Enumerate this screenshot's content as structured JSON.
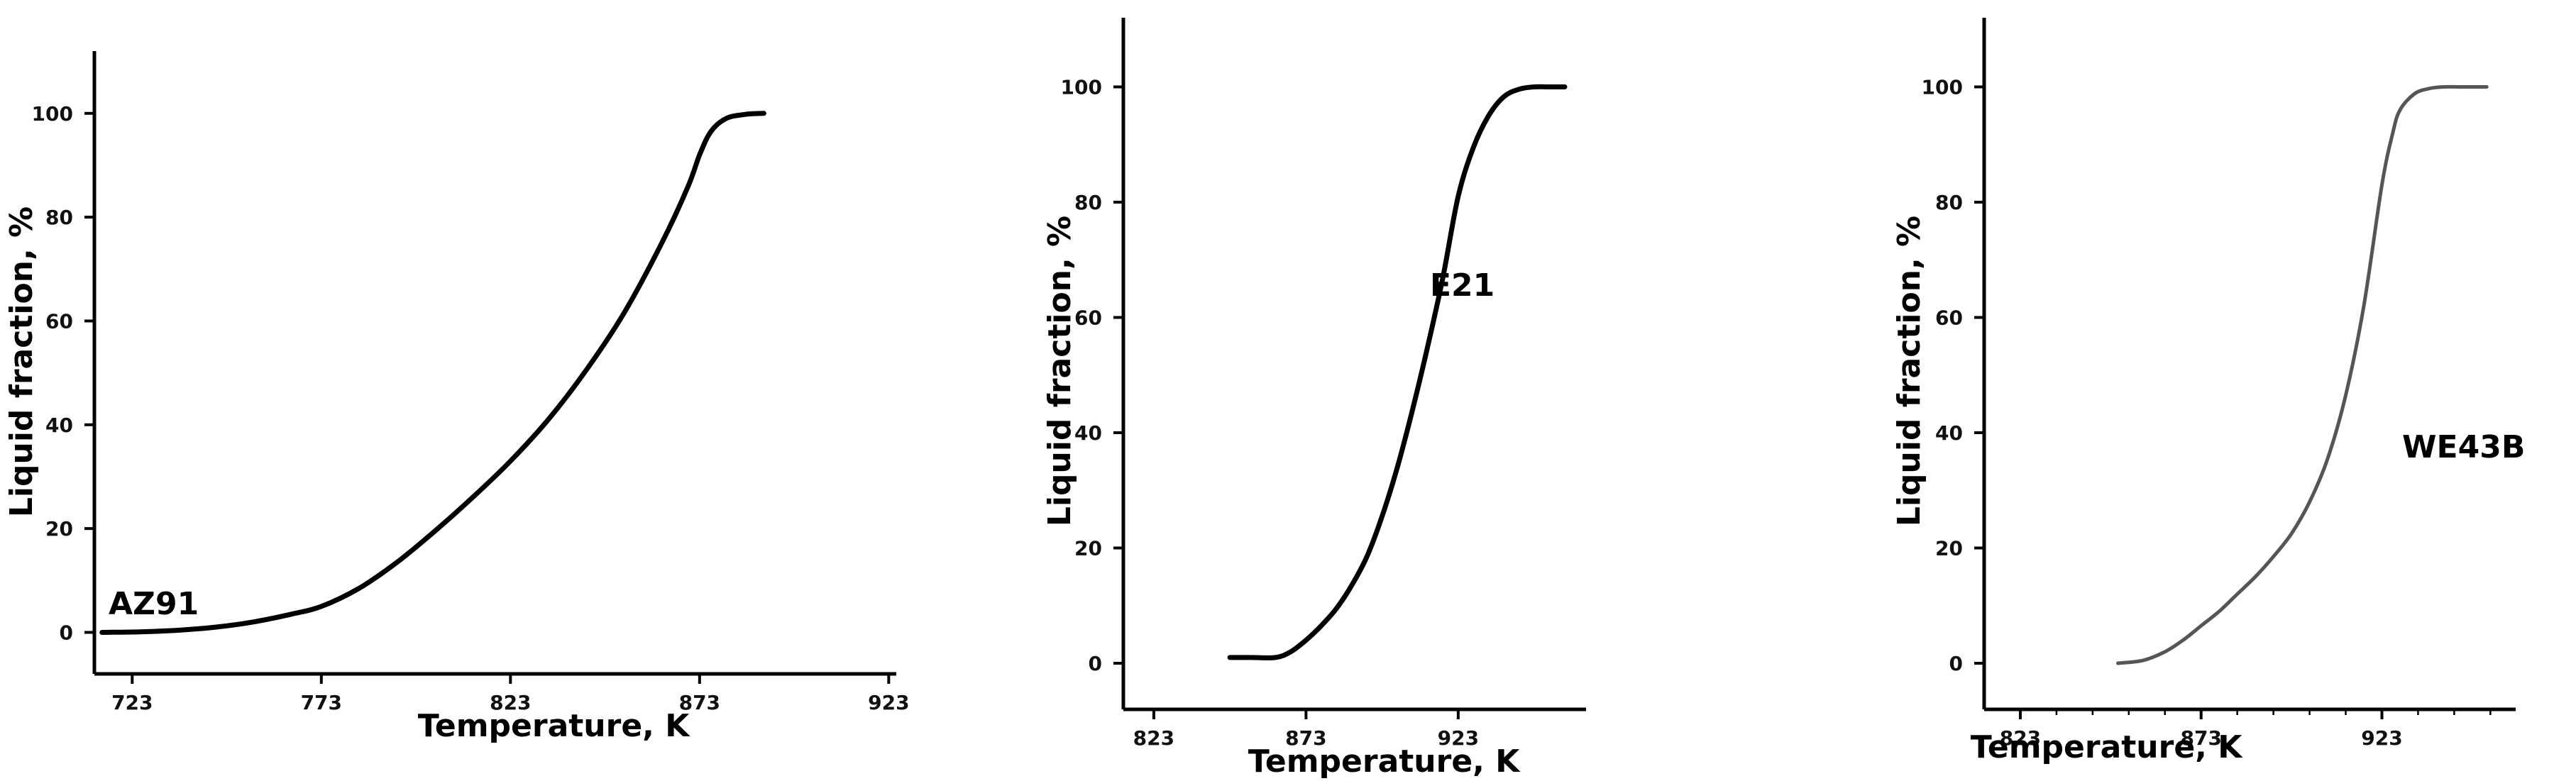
{
  "chart_data": [
    {
      "type": "line",
      "xlabel": "Temperature, K",
      "ylabel": "Liquid fraction, %",
      "xlim": [
        713,
        925
      ],
      "ylim": [
        -8,
        112
      ],
      "xticks": [
        723,
        773,
        823,
        873,
        923
      ],
      "yticks": [
        0,
        20,
        40,
        60,
        80,
        100
      ],
      "xminor": false,
      "grid": false,
      "legend": "none",
      "annotation": "AZ91",
      "color": "#000000",
      "series": [
        {
          "x": [
            715,
            725,
            735,
            745,
            755,
            765,
            773,
            783,
            793,
            803,
            813,
            823,
            833,
            843,
            853,
            863,
            870,
            873,
            876,
            880,
            885,
            890
          ],
          "y": [
            0,
            0.1,
            0.4,
            1.0,
            2.0,
            3.5,
            5.0,
            8.5,
            13.5,
            19.5,
            26.0,
            33.0,
            41.0,
            50.5,
            61.5,
            75.0,
            86.0,
            92.0,
            96.5,
            99.0,
            99.8,
            100
          ]
        }
      ]
    },
    {
      "type": "line",
      "xlabel": "Temperature, K",
      "ylabel": "Liquid fraction, %",
      "xlim": [
        813,
        965
      ],
      "ylim": [
        -8,
        112
      ],
      "xticks": [
        823,
        873,
        923
      ],
      "yticks": [
        0,
        20,
        40,
        60,
        80,
        100
      ],
      "xminor": false,
      "grid": false,
      "legend": "none",
      "annotation": "E21",
      "color": "#000000",
      "series": [
        {
          "x": [
            848,
            855,
            863,
            868,
            873,
            878,
            883,
            888,
            893,
            898,
            903,
            908,
            913,
            918,
            923,
            928,
            933,
            938,
            943,
            948,
            953,
            958
          ],
          "y": [
            1,
            1,
            1,
            2.0,
            4.0,
            6.5,
            9.5,
            13.5,
            18.5,
            25.5,
            34.0,
            44.0,
            55.0,
            67.0,
            81.0,
            89.5,
            95.0,
            98.3,
            99.6,
            100,
            100,
            100
          ]
        }
      ]
    },
    {
      "type": "line",
      "xlabel": "Temperature, K",
      "ylabel": "Liquid fraction, %",
      "xlim": [
        813,
        960
      ],
      "ylim": [
        -8,
        112
      ],
      "xticks": [
        823,
        873,
        923
      ],
      "yticks": [
        0,
        20,
        40,
        60,
        80,
        100
      ],
      "xminor": true,
      "grid": false,
      "legend": "none",
      "annotation": "WE43B",
      "color": "#555555",
      "series": [
        {
          "x": [
            850,
            857,
            863,
            868,
            873,
            878,
            883,
            888,
            893,
            898,
            903,
            908,
            913,
            918,
            923,
            926,
            928,
            932,
            936,
            940,
            944,
            948,
            952
          ],
          "y": [
            0,
            0.5,
            2.0,
            4.0,
            6.5,
            9.0,
            12.0,
            15.0,
            18.5,
            22.5,
            28.0,
            35.5,
            46.5,
            62.0,
            83.0,
            92.0,
            96.0,
            98.8,
            99.7,
            100,
            100,
            100,
            100
          ]
        }
      ]
    }
  ]
}
